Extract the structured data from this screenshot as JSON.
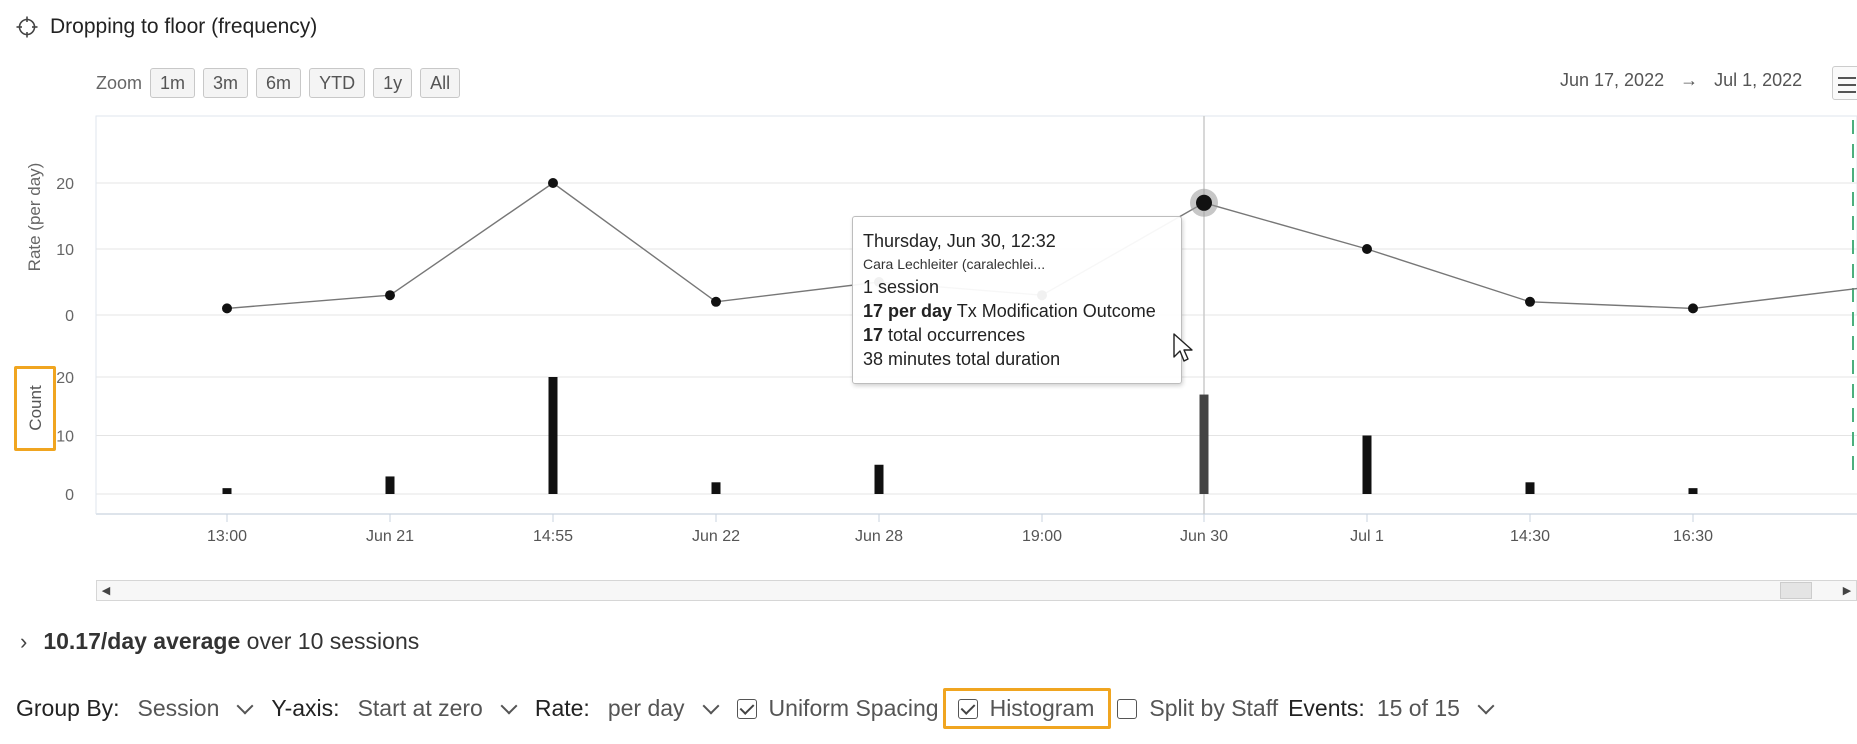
{
  "header": {
    "title": "Dropping to floor (frequency)",
    "icon": "crosshair-icon"
  },
  "zoom": {
    "label": "Zoom",
    "buttons": [
      "1m",
      "3m",
      "6m",
      "YTD",
      "1y",
      "All"
    ]
  },
  "range": {
    "start": "Jun 17, 2022",
    "arrow": "→",
    "end": "Jul 1, 2022"
  },
  "chart_data": [
    {
      "type": "line",
      "ylabel": "Rate (per day)",
      "yticks": [
        "20",
        "10",
        "0"
      ],
      "ylim": [
        0,
        20
      ],
      "x": [
        "13:00",
        "Jun 21",
        "14:55",
        "Jun 22",
        "Jun 28",
        "19:00",
        "Jun 30",
        "Jul 1",
        "14:30",
        "16:30"
      ],
      "values": [
        1,
        3,
        20,
        2,
        5,
        3,
        17,
        10,
        2,
        1
      ],
      "highlighted_index": 6,
      "series_color": "#111111",
      "line_color": "#777777"
    },
    {
      "type": "bar",
      "ylabel": "Count",
      "yticks": [
        "20",
        "10",
        "0"
      ],
      "ylim": [
        0,
        20
      ],
      "categories": [
        "13:00",
        "Jun 21",
        "14:55",
        "Jun 22",
        "Jun 28",
        "19:00",
        "Jun 30",
        "Jul 1",
        "14:30",
        "16:30"
      ],
      "values": [
        1,
        3,
        20,
        2,
        5,
        0,
        17,
        10,
        2,
        1
      ],
      "bar_color": "#111111",
      "highlight_bar_color": "#444444"
    }
  ],
  "tooltip": {
    "date": "Thursday, Jun 30, 12:32",
    "user": "Cara Lechleiter (caralechlei...",
    "sessions": "1 session",
    "rate_bold": "17 per day",
    "rate_text": " Tx Modification Outcome",
    "occ_bold": "17",
    "occ_text": " total occurrences",
    "duration": "38 minutes total duration"
  },
  "summary": {
    "bold": "10.17/day average",
    "text": "over 10 sessions"
  },
  "controls": {
    "group_by_label": "Group By:",
    "group_by_value": "Session",
    "yaxis_label": "Y-axis:",
    "yaxis_value": "Start at zero",
    "rate_label": "Rate:",
    "rate_value": "per day",
    "uniform_spacing": "Uniform Spacing",
    "histogram": "Histogram",
    "split_by_staff": "Split by Staff",
    "events_label": "Events:",
    "events_value": "15 of 15"
  },
  "colors": {
    "highlight": "#f0a520",
    "grid": "#e6e6e6",
    "dashed_marker": "#4caf7d"
  }
}
